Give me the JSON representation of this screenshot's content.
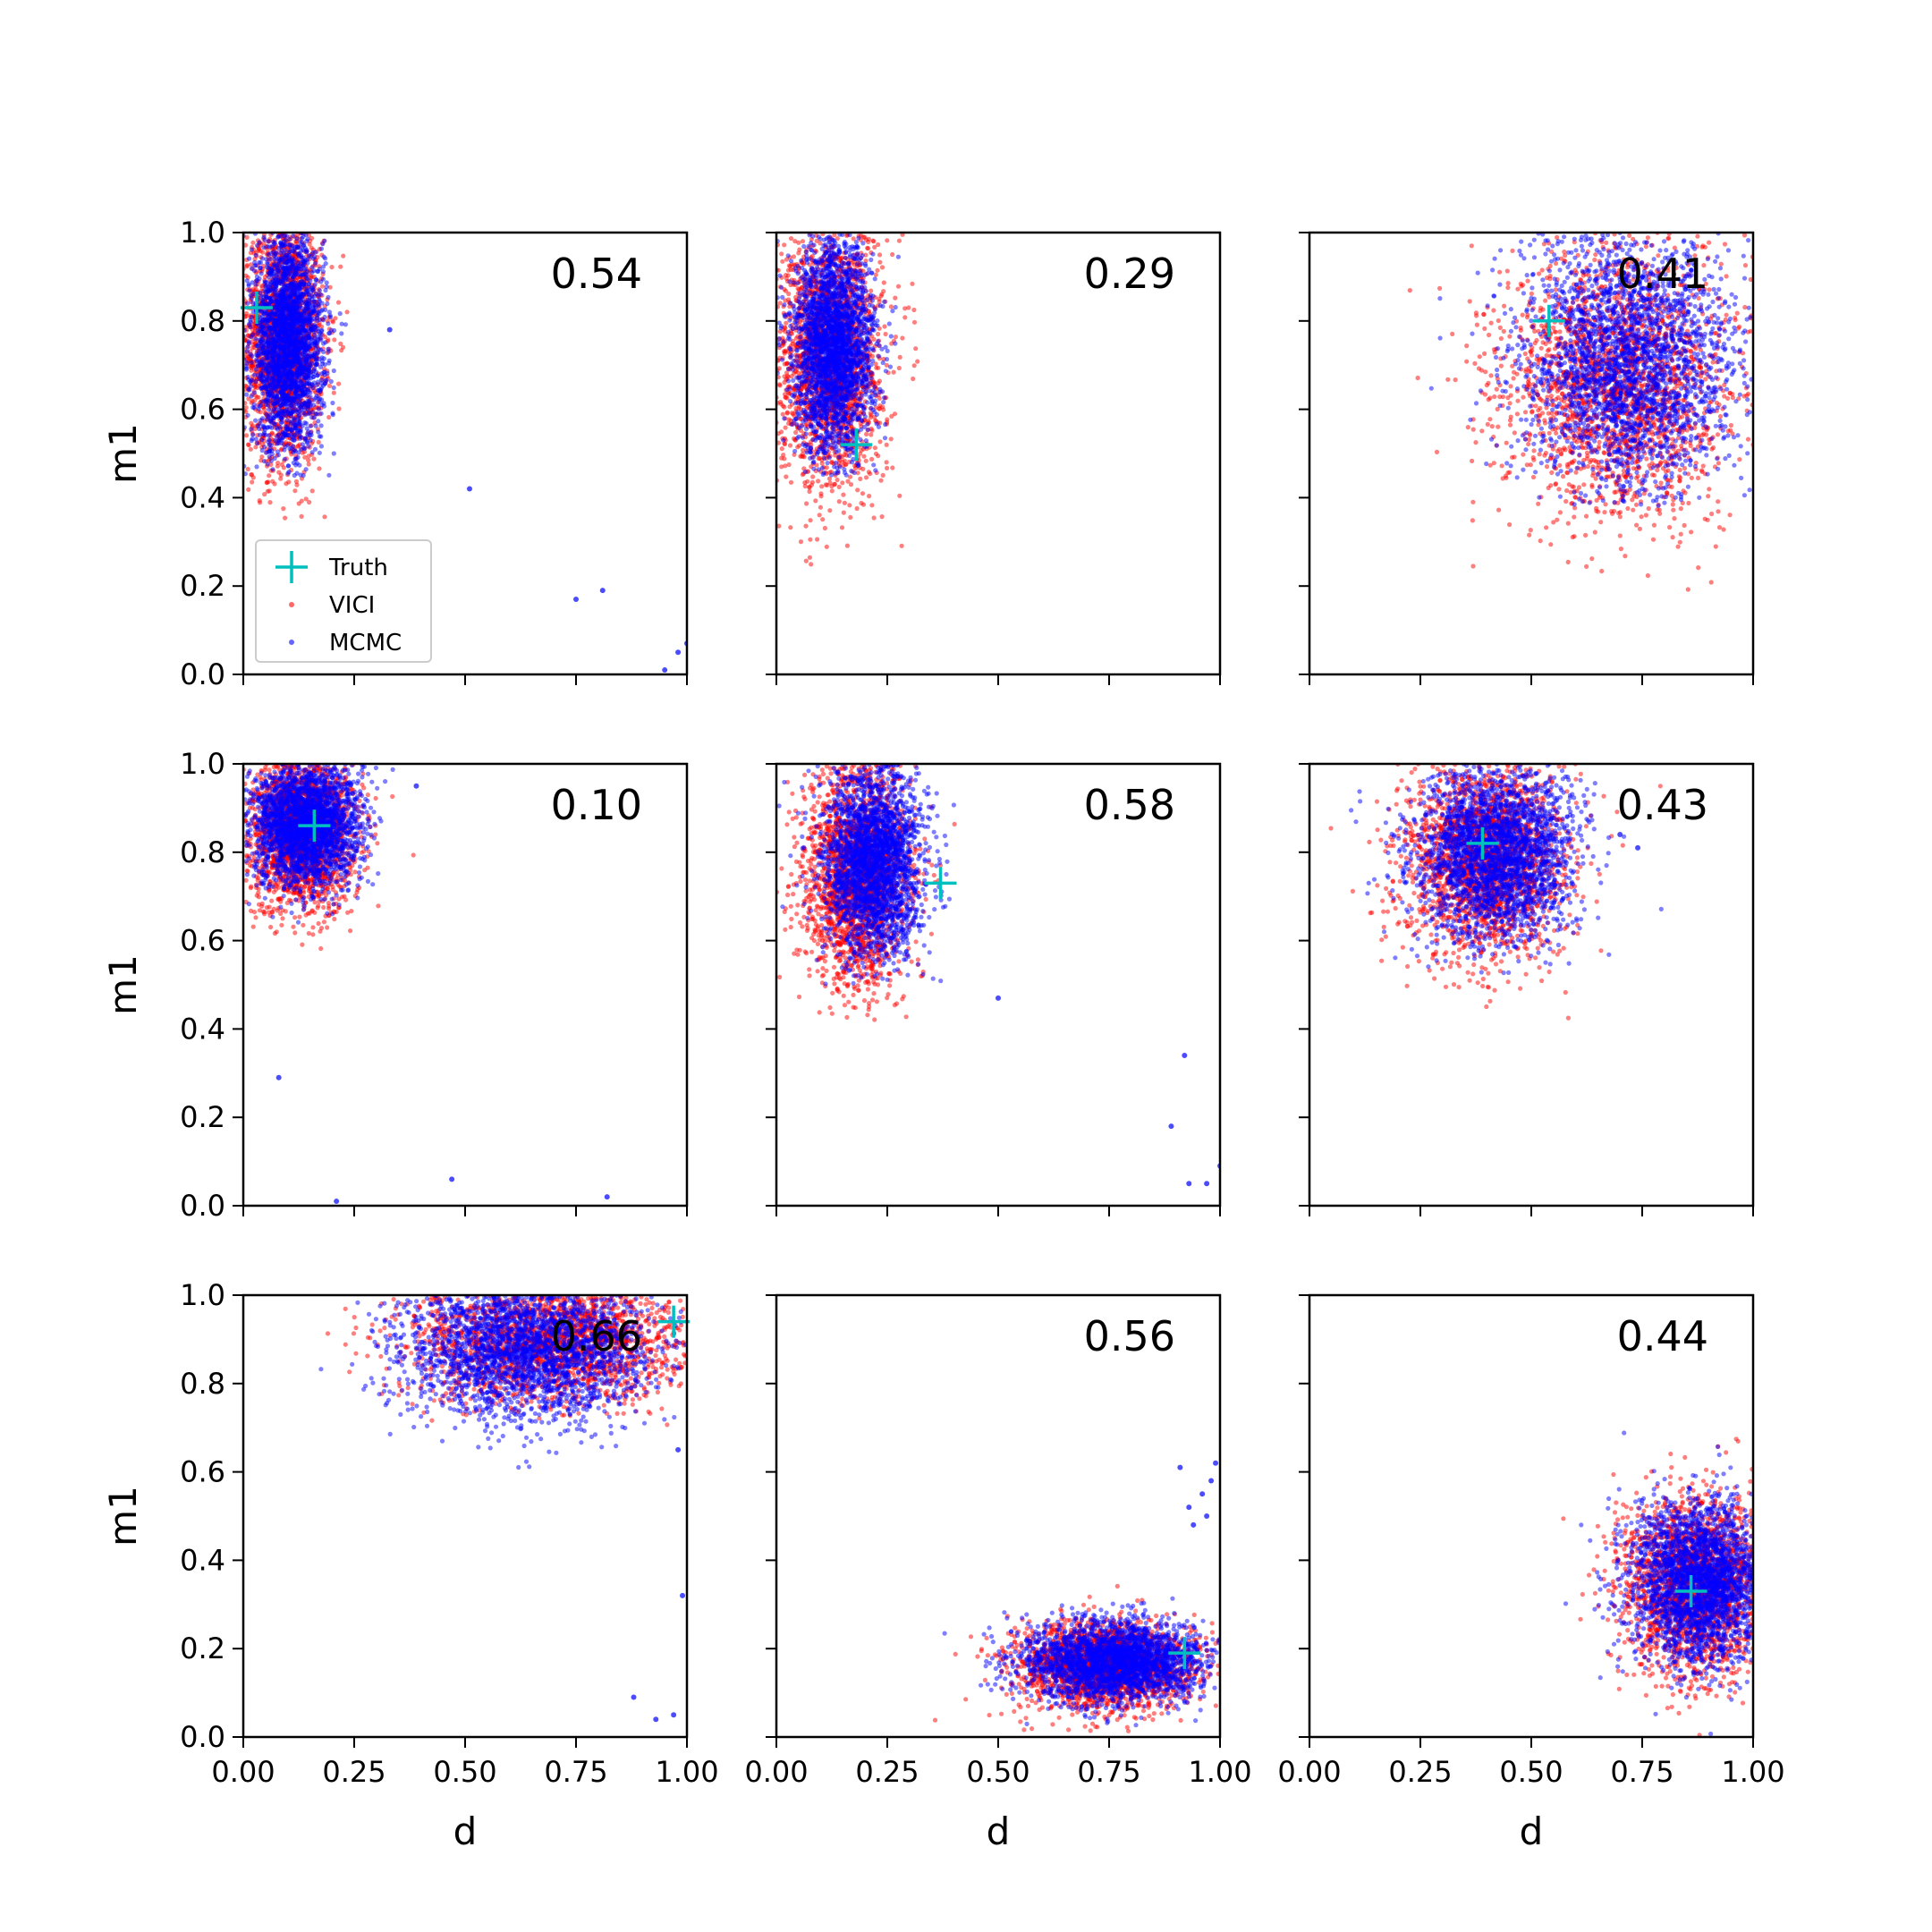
{
  "chart_data": {
    "type": "scatter",
    "grid": false,
    "xlim": [
      0,
      1
    ],
    "ylim": [
      0,
      1
    ],
    "xticks": [
      "0.00",
      "0.25",
      "0.50",
      "0.75",
      "1.00"
    ],
    "yticks": [
      "0.0",
      "0.2",
      "0.4",
      "0.6",
      "0.8",
      "1.0"
    ],
    "xlabel": "d",
    "ylabel": "m1",
    "legend": {
      "placement": "lower-left",
      "panel": 0,
      "entries": [
        {
          "label": "Truth",
          "color": "#00bfbf",
          "marker": "plus"
        },
        {
          "label": "VICI",
          "color": "#ff0000",
          "marker": "dot"
        },
        {
          "label": "MCMC",
          "color": "#0000ff",
          "marker": "dot"
        }
      ]
    },
    "panels": [
      {
        "annotation": "0.54",
        "truth": [
          0.03,
          0.83
        ],
        "vici": {
          "center": [
            0.09,
            0.76
          ],
          "spread": [
            0.045,
            0.14
          ],
          "clip": [
            0,
            1,
            0.35,
            1
          ]
        },
        "mcmc": {
          "center": [
            0.1,
            0.75
          ],
          "spread": [
            0.04,
            0.12
          ],
          "clip": [
            0,
            1,
            0.45,
            1
          ]
        },
        "mcmc_outliers": [
          [
            0.51,
            0.42
          ],
          [
            0.75,
            0.17
          ],
          [
            0.81,
            0.19
          ],
          [
            0.33,
            0.78
          ],
          [
            0.98,
            0.05
          ],
          [
            1.0,
            0.07
          ],
          [
            0.95,
            0.01
          ]
        ]
      },
      {
        "annotation": "0.29",
        "truth": [
          0.18,
          0.52
        ],
        "vici": {
          "center": [
            0.12,
            0.72
          ],
          "spread": [
            0.06,
            0.15
          ],
          "clip": [
            0,
            1,
            0.22,
            1
          ]
        },
        "mcmc": {
          "center": [
            0.13,
            0.74
          ],
          "spread": [
            0.045,
            0.12
          ],
          "clip": [
            0,
            1,
            0.45,
            1
          ]
        },
        "mcmc_outliers": []
      },
      {
        "annotation": "0.41",
        "truth": [
          0.54,
          0.8
        ],
        "vici": {
          "center": [
            0.7,
            0.66
          ],
          "spread": [
            0.13,
            0.15
          ],
          "clip": [
            0,
            1,
            0.15,
            1
          ]
        },
        "mcmc": {
          "center": [
            0.72,
            0.7
          ],
          "spread": [
            0.12,
            0.15
          ],
          "clip": [
            0,
            1,
            0.38,
            1
          ]
        },
        "mcmc_outliers": []
      },
      {
        "annotation": "0.10",
        "truth": [
          0.16,
          0.86
        ],
        "vici": {
          "center": [
            0.13,
            0.85
          ],
          "spread": [
            0.06,
            0.09
          ],
          "clip": [
            0,
            1,
            0.55,
            1
          ]
        },
        "mcmc": {
          "center": [
            0.14,
            0.86
          ],
          "spread": [
            0.06,
            0.07
          ],
          "clip": [
            0,
            1,
            0.63,
            1
          ]
        },
        "mcmc_outliers": [
          [
            0.08,
            0.29
          ],
          [
            0.21,
            0.01
          ],
          [
            0.47,
            0.06
          ],
          [
            0.82,
            0.02
          ],
          [
            0.39,
            0.95
          ]
        ]
      },
      {
        "annotation": "0.58",
        "truth": [
          0.37,
          0.73
        ],
        "vici": {
          "center": [
            0.18,
            0.75
          ],
          "spread": [
            0.06,
            0.13
          ],
          "clip": [
            0,
            1,
            0.42,
            1
          ]
        },
        "mcmc": {
          "center": [
            0.22,
            0.78
          ],
          "spread": [
            0.055,
            0.11
          ],
          "clip": [
            0,
            1,
            0.5,
            1
          ]
        },
        "mcmc_outliers": [
          [
            0.5,
            0.47
          ],
          [
            0.92,
            0.34
          ],
          [
            0.89,
            0.18
          ],
          [
            0.93,
            0.05
          ],
          [
            0.97,
            0.05
          ],
          [
            1.0,
            0.09
          ]
        ]
      },
      {
        "annotation": "0.43",
        "truth": [
          0.39,
          0.82
        ],
        "vici": {
          "center": [
            0.4,
            0.78
          ],
          "spread": [
            0.09,
            0.11
          ],
          "clip": [
            0,
            1,
            0.4,
            1
          ]
        },
        "mcmc": {
          "center": [
            0.42,
            0.8
          ],
          "spread": [
            0.09,
            0.1
          ],
          "clip": [
            0,
            1,
            0.52,
            1
          ]
        },
        "mcmc_outliers": [
          [
            0.7,
            0.84
          ],
          [
            0.74,
            0.81
          ]
        ]
      },
      {
        "annotation": "0.66",
        "truth": [
          0.97,
          0.94
        ],
        "vici": {
          "center": [
            0.7,
            0.9
          ],
          "spread": [
            0.16,
            0.07
          ],
          "clip": [
            0,
            1,
            0.7,
            1
          ]
        },
        "mcmc": {
          "center": [
            0.64,
            0.88
          ],
          "spread": [
            0.14,
            0.08
          ],
          "clip": [
            0,
            1,
            0.6,
            1
          ]
        },
        "mcmc_outliers": [
          [
            0.99,
            0.32
          ],
          [
            0.97,
            0.05
          ],
          [
            0.88,
            0.09
          ],
          [
            0.93,
            0.04
          ],
          [
            0.98,
            0.65
          ]
        ]
      },
      {
        "annotation": "0.56",
        "truth": [
          0.92,
          0.19
        ],
        "vici": {
          "center": [
            0.74,
            0.16
          ],
          "spread": [
            0.1,
            0.05
          ],
          "clip": [
            0,
            1,
            0,
            1
          ]
        },
        "mcmc": {
          "center": [
            0.76,
            0.17
          ],
          "spread": [
            0.1,
            0.045
          ],
          "clip": [
            0,
            1,
            0,
            1
          ]
        },
        "mcmc_outliers": [
          [
            0.91,
            0.61
          ],
          [
            0.96,
            0.55
          ],
          [
            0.98,
            0.58
          ],
          [
            0.93,
            0.52
          ],
          [
            0.99,
            0.62
          ],
          [
            0.94,
            0.48
          ],
          [
            0.97,
            0.5
          ]
        ]
      },
      {
        "annotation": "0.44",
        "truth": [
          0.86,
          0.33
        ],
        "vici": {
          "center": [
            0.87,
            0.34
          ],
          "spread": [
            0.08,
            0.1
          ],
          "clip": [
            0,
            1,
            0,
            1
          ]
        },
        "mcmc": {
          "center": [
            0.88,
            0.35
          ],
          "spread": [
            0.08,
            0.09
          ],
          "clip": [
            0,
            1,
            0,
            1
          ]
        },
        "mcmc_outliers": []
      }
    ]
  }
}
